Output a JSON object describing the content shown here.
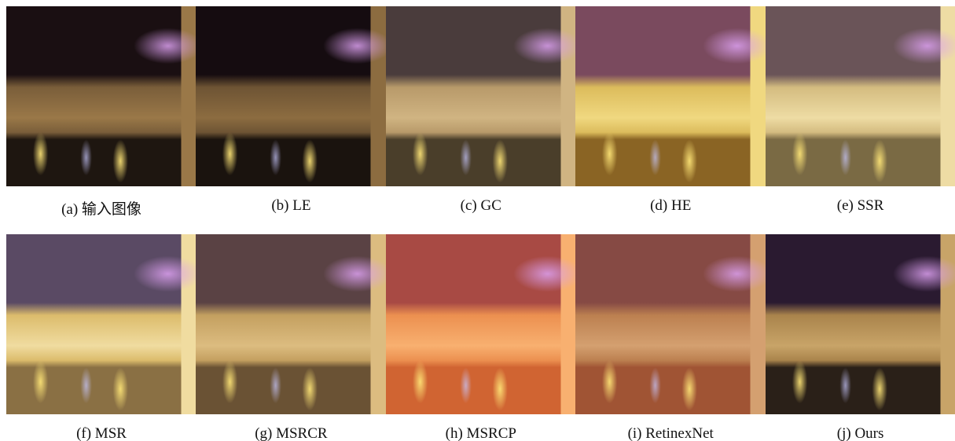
{
  "panels": [
    {
      "caption": "(a) 输入图像"
    },
    {
      "caption": "(b) LE"
    },
    {
      "caption": "(c) GC"
    },
    {
      "caption": "(d) HE"
    },
    {
      "caption": "(e) SSR"
    },
    {
      "caption": "(f) MSR"
    },
    {
      "caption": "(g) MSRCR"
    },
    {
      "caption": "(h) MSRCP"
    },
    {
      "caption": "(i) RetinexNet"
    },
    {
      "caption": "(j) Ours"
    }
  ]
}
